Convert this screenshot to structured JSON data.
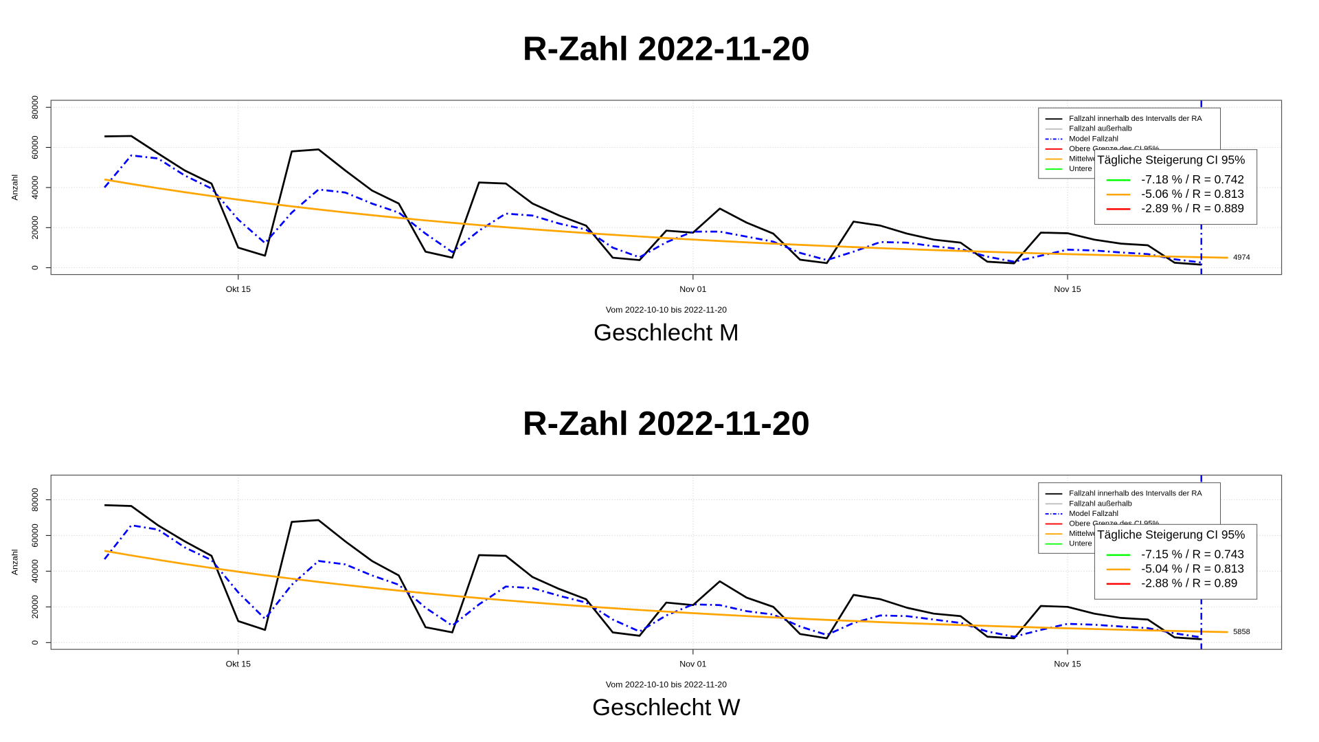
{
  "chart_data": [
    {
      "type": "line",
      "title": "R-Zahl 2022-11-20",
      "subtitle": "Geschlecht M",
      "xlabel": "Vom 2022-10-10 bis 2022-11-20",
      "ylabel": "Anzahl",
      "x": [
        "2022-10-10",
        "2022-10-11",
        "2022-10-12",
        "2022-10-13",
        "2022-10-14",
        "2022-10-15",
        "2022-10-16",
        "2022-10-17",
        "2022-10-18",
        "2022-10-19",
        "2022-10-20",
        "2022-10-21",
        "2022-10-22",
        "2022-10-23",
        "2022-10-24",
        "2022-10-25",
        "2022-10-26",
        "2022-10-27",
        "2022-10-28",
        "2022-10-29",
        "2022-10-30",
        "2022-10-31",
        "2022-11-01",
        "2022-11-02",
        "2022-11-03",
        "2022-11-04",
        "2022-11-05",
        "2022-11-06",
        "2022-11-07",
        "2022-11-08",
        "2022-11-09",
        "2022-11-10",
        "2022-11-11",
        "2022-11-12",
        "2022-11-13",
        "2022-11-14",
        "2022-11-15",
        "2022-11-16",
        "2022-11-17",
        "2022-11-18",
        "2022-11-19",
        "2022-11-20",
        "2022-11-21"
      ],
      "xlim": [
        "2022-10-08",
        "2022-11-23"
      ],
      "xticks": [
        {
          "value": "2022-10-15",
          "label": "Okt 15"
        },
        {
          "value": "2022-11-01",
          "label": "Nov 01"
        },
        {
          "value": "2022-11-15",
          "label": "Nov 15"
        }
      ],
      "ylim": [
        -3400,
        83500
      ],
      "yticks": [
        0,
        20000,
        40000,
        60000,
        80000
      ],
      "grid": true,
      "series": [
        {
          "color": "#000000",
          "style": "solid",
          "values": [
            65500,
            65700,
            57000,
            48500,
            42000,
            10000,
            6000,
            58000,
            59000,
            48500,
            38500,
            32000,
            8000,
            5000,
            42500,
            42000,
            32000,
            26000,
            21000,
            5000,
            3800,
            18500,
            17500,
            29500,
            22500,
            17000,
            4000,
            2300,
            23000,
            21000,
            17000,
            14000,
            12500,
            3000,
            2200,
            17500,
            17200,
            14000,
            12000,
            11200,
            2500,
            1500,
            null
          ]
        },
        {
          "color": "#0000ff",
          "style": "dashdot",
          "values": [
            40000,
            56000,
            54500,
            46000,
            39500,
            24000,
            12300,
            27500,
            39000,
            37500,
            32000,
            27500,
            17000,
            7800,
            18500,
            27000,
            26000,
            22000,
            19000,
            10000,
            5200,
            12700,
            18000,
            18000,
            15500,
            13000,
            7400,
            3800,
            8000,
            12800,
            12500,
            10700,
            9300,
            5500,
            3000,
            6000,
            9000,
            8600,
            7600,
            6800,
            4200,
            2600,
            null
          ]
        },
        {
          "color": "#ffa500",
          "style": "solid",
          "label_end": true,
          "values": [
            44000,
            41774,
            39660,
            37653,
            35748,
            33939,
            32222,
            30592,
            29044,
            27574,
            26179,
            24854,
            23597,
            22403,
            21269,
            20193,
            19171,
            18201,
            17280,
            16406,
            15576,
            14788,
            14040,
            13329,
            12655,
            12014,
            11406,
            10829,
            10281,
            9761,
            9267,
            8798,
            8353,
            7930,
            7529,
            7148,
            6786,
            6443,
            6117,
            5807,
            5513,
            5234,
            4974
          ]
        }
      ],
      "legend": [
        {
          "label": "Fallzahl innerhalb des Intervalls der RA",
          "color": "#000000",
          "style": "solid"
        },
        {
          "label": "Fallzahl außerhalb",
          "color": "#bebebe",
          "style": "solid"
        },
        {
          "label": "Model Fallzahl",
          "color": "#0000ff",
          "style": "dashdot"
        },
        {
          "label": "Obere Grenze des CI 95%",
          "color": "#ff0000",
          "style": "solid"
        },
        {
          "label": "Mittelwert",
          "color": "#ffa500",
          "style": "solid"
        },
        {
          "label": "Untere Grenze des CI 95%",
          "color": "#00ff00",
          "style": "solid"
        }
      ],
      "ci_box": {
        "title": "Tägliche Steigerung CI  95%",
        "items": [
          {
            "label": "-7.18 % / R = 0.742",
            "color": "#00ff00"
          },
          {
            "label": "-5.06 % / R = 0.813",
            "color": "#ffa500"
          },
          {
            "label": "-2.89 % / R = 0.889",
            "color": "#ff0000"
          }
        ]
      }
    },
    {
      "type": "line",
      "title": "R-Zahl 2022-11-20",
      "subtitle": "Geschlecht W",
      "xlabel": "Vom 2022-10-10 bis 2022-11-20",
      "ylabel": "Anzahl",
      "x": [
        "2022-10-10",
        "2022-10-11",
        "2022-10-12",
        "2022-10-13",
        "2022-10-14",
        "2022-10-15",
        "2022-10-16",
        "2022-10-17",
        "2022-10-18",
        "2022-10-19",
        "2022-10-20",
        "2022-10-21",
        "2022-10-22",
        "2022-10-23",
        "2022-10-24",
        "2022-10-25",
        "2022-10-26",
        "2022-10-27",
        "2022-10-28",
        "2022-10-29",
        "2022-10-30",
        "2022-10-31",
        "2022-11-01",
        "2022-11-02",
        "2022-11-03",
        "2022-11-04",
        "2022-11-05",
        "2022-11-06",
        "2022-11-07",
        "2022-11-08",
        "2022-11-09",
        "2022-11-10",
        "2022-11-11",
        "2022-11-12",
        "2022-11-13",
        "2022-11-14",
        "2022-11-15",
        "2022-11-16",
        "2022-11-17",
        "2022-11-18",
        "2022-11-19",
        "2022-11-20",
        "2022-11-21"
      ],
      "xlim": [
        "2022-10-08",
        "2022-11-23"
      ],
      "xticks": [
        {
          "value": "2022-10-15",
          "label": "Okt 15"
        },
        {
          "value": "2022-11-01",
          "label": "Nov 01"
        },
        {
          "value": "2022-11-15",
          "label": "Nov 15"
        }
      ],
      "ylim": [
        -3800,
        93800
      ],
      "yticks": [
        0,
        20000,
        40000,
        60000,
        80000
      ],
      "grid": true,
      "series": [
        {
          "color": "#000000",
          "style": "solid",
          "values": [
            77000,
            76500,
            65700,
            56700,
            48600,
            12000,
            7100,
            67600,
            68600,
            56700,
            45700,
            37600,
            8600,
            5700,
            49000,
            48600,
            36700,
            30000,
            24300,
            5700,
            3800,
            22400,
            21000,
            34300,
            25200,
            20000,
            4800,
            2400,
            26700,
            24300,
            19500,
            16200,
            14800,
            3300,
            2400,
            20500,
            20000,
            16200,
            13800,
            12900,
            2900,
            1900,
            null
          ]
        },
        {
          "color": "#0000ff",
          "style": "dashdot",
          "values": [
            46700,
            65700,
            63300,
            53300,
            46200,
            28100,
            13300,
            32400,
            45700,
            43800,
            37600,
            32400,
            19500,
            9500,
            21400,
            31400,
            30500,
            26200,
            22400,
            12900,
            6200,
            15200,
            21400,
            21000,
            17600,
            15700,
            9000,
            4300,
            11000,
            15200,
            14800,
            12900,
            11000,
            6200,
            3300,
            7100,
            10500,
            10000,
            9000,
            8100,
            5200,
            2900,
            null
          ]
        },
        {
          "color": "#ffa500",
          "style": "solid",
          "label_end": true,
          "values": [
            51400,
            48810,
            46350,
            44014,
            41795,
            39689,
            37688,
            35789,
            33985,
            32272,
            30646,
            29101,
            27634,
            26242,
            24919,
            23663,
            22470,
            21338,
            20262,
            19241,
            18271,
            17350,
            16476,
            15645,
            14857,
            14108,
            13397,
            12722,
            12080,
            11472,
            10893,
            10344,
            9823,
            9328,
            8858,
            8411,
            7987,
            7585,
            7202,
            6839,
            6495,
            6167,
            5858
          ]
        }
      ],
      "legend": [
        {
          "label": "Fallzahl innerhalb des Intervalls der RA",
          "color": "#000000",
          "style": "solid"
        },
        {
          "label": "Fallzahl außerhalb",
          "color": "#bebebe",
          "style": "solid"
        },
        {
          "label": "Model Fallzahl",
          "color": "#0000ff",
          "style": "dashdot"
        },
        {
          "label": "Obere Grenze des CI 95%",
          "color": "#ff0000",
          "style": "solid"
        },
        {
          "label": "Mittelwert",
          "color": "#ffa500",
          "style": "solid"
        },
        {
          "label": "Untere Grenze des CI 95%",
          "color": "#00ff00",
          "style": "solid"
        }
      ],
      "ci_box": {
        "title": "Tägliche Steigerung CI  95%",
        "items": [
          {
            "label": "-7.15 % / R = 0.743",
            "color": "#00ff00"
          },
          {
            "label": "-5.04 % / R = 0.813",
            "color": "#ffa500"
          },
          {
            "label": "-2.88 % / R = 0.89",
            "color": "#ff0000"
          }
        ]
      }
    }
  ]
}
